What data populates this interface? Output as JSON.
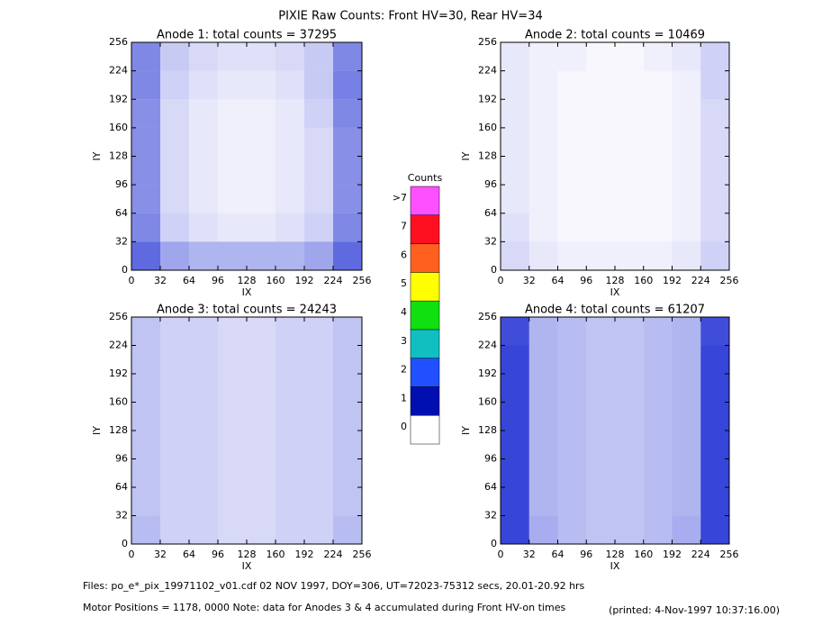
{
  "title": "PIXIE Raw Counts:  Front HV=30, Rear HV=34",
  "colorbar": {
    "title": "Counts",
    "ticks": [
      0,
      1,
      2,
      3,
      4,
      5,
      6,
      7,
      {
        "value": 8,
        "label": ">7"
      }
    ],
    "colors": [
      "#ffffff",
      "#0010b0",
      "#2050ff",
      "#10c0c0",
      "#10e010",
      "#ffff00",
      "#ff6020",
      "#ff1020",
      "#ff50ff"
    ]
  },
  "footer": {
    "files": "Files: po_e*_pix_19971102_v01.cdf    02 NOV 1997, DOY=306, UT=72023-75312 secs, 20.01-20.92 hrs",
    "motor": "Motor Positions = 1178, 0000    Note: data for Anodes 3 & 4 accumulated during Front HV-on times",
    "printed": "(printed:  4-Nov-1997 10:37:16.00)"
  },
  "chart_data": [
    {
      "type": "heatmap",
      "title": "Anode 1: total counts = 37295",
      "x_label": "IX",
      "y_label": "IY",
      "color": "#1020d0",
      "xlim": [
        0,
        256
      ],
      "ylim": [
        0,
        256
      ],
      "xticks": [
        0,
        32,
        64,
        96,
        128,
        160,
        192,
        224,
        256
      ],
      "yticks": [
        0,
        32,
        64,
        96,
        128,
        160,
        192,
        224,
        256
      ],
      "values": [
        [
          2,
          1.2,
          1,
          1,
          1,
          1,
          1.2,
          2
        ],
        [
          1.6,
          0.6,
          0.4,
          0.3,
          0.3,
          0.4,
          0.6,
          1.6
        ],
        [
          1.5,
          0.5,
          0.3,
          0.2,
          0.2,
          0.3,
          0.5,
          1.5
        ],
        [
          1.5,
          0.5,
          0.3,
          0.2,
          0.2,
          0.3,
          0.5,
          1.5
        ],
        [
          1.5,
          0.5,
          0.3,
          0.2,
          0.2,
          0.3,
          0.5,
          1.5
        ],
        [
          1.5,
          0.5,
          0.3,
          0.2,
          0.2,
          0.3,
          0.6,
          1.6
        ],
        [
          1.6,
          0.6,
          0.4,
          0.3,
          0.3,
          0.4,
          0.7,
          1.7
        ],
        [
          1.6,
          0.7,
          0.5,
          0.4,
          0.4,
          0.5,
          0.7,
          1.6
        ]
      ]
    },
    {
      "type": "heatmap",
      "title": "Anode 2: total counts = 10469",
      "x_label": "IX",
      "y_label": "IY",
      "color": "#1020d0",
      "xlim": [
        0,
        256
      ],
      "ylim": [
        0,
        256
      ],
      "xticks": [
        0,
        32,
        64,
        96,
        128,
        160,
        192,
        224,
        256
      ],
      "yticks": [
        0,
        32,
        64,
        96,
        128,
        160,
        192,
        224,
        256
      ],
      "values": [
        [
          0.5,
          0.3,
          0.2,
          0.2,
          0.2,
          0.2,
          0.3,
          0.6
        ],
        [
          0.4,
          0.2,
          0.1,
          0.1,
          0.1,
          0.1,
          0.2,
          0.5
        ],
        [
          0.3,
          0.2,
          0.1,
          0.1,
          0.1,
          0.1,
          0.2,
          0.5
        ],
        [
          0.3,
          0.2,
          0.1,
          0.1,
          0.1,
          0.1,
          0.2,
          0.5
        ],
        [
          0.3,
          0.2,
          0.1,
          0.1,
          0.1,
          0.1,
          0.2,
          0.5
        ],
        [
          0.3,
          0.2,
          0.1,
          0.1,
          0.1,
          0.1,
          0.2,
          0.5
        ],
        [
          0.3,
          0.2,
          0.1,
          0.1,
          0.1,
          0.1,
          0.2,
          0.6
        ],
        [
          0.3,
          0.2,
          0.2,
          0.1,
          0.1,
          0.2,
          0.3,
          0.6
        ]
      ]
    },
    {
      "type": "heatmap",
      "title": "Anode 3: total counts = 24243",
      "x_label": "IX",
      "y_label": "IY",
      "color": "#1020d0",
      "xlim": [
        0,
        256
      ],
      "ylim": [
        0,
        256
      ],
      "xticks": [
        0,
        32,
        64,
        96,
        128,
        160,
        192,
        224,
        256
      ],
      "yticks": [
        0,
        32,
        64,
        96,
        128,
        160,
        192,
        224,
        256
      ],
      "values": [
        [
          0.9,
          0.6,
          0.6,
          0.5,
          0.5,
          0.6,
          0.6,
          0.9
        ],
        [
          0.8,
          0.6,
          0.6,
          0.5,
          0.5,
          0.6,
          0.6,
          0.8
        ],
        [
          0.8,
          0.6,
          0.6,
          0.5,
          0.5,
          0.6,
          0.6,
          0.8
        ],
        [
          0.8,
          0.6,
          0.6,
          0.5,
          0.5,
          0.6,
          0.6,
          0.8
        ],
        [
          0.8,
          0.6,
          0.6,
          0.5,
          0.5,
          0.6,
          0.6,
          0.8
        ],
        [
          0.8,
          0.6,
          0.6,
          0.5,
          0.5,
          0.6,
          0.6,
          0.8
        ],
        [
          0.8,
          0.6,
          0.6,
          0.5,
          0.5,
          0.6,
          0.6,
          0.8
        ],
        [
          0.8,
          0.6,
          0.6,
          0.5,
          0.5,
          0.6,
          0.6,
          0.8
        ]
      ]
    },
    {
      "type": "heatmap",
      "title": "Anode 4: total counts = 61207",
      "x_label": "IX",
      "y_label": "IY",
      "color": "#1020d0",
      "xlim": [
        0,
        256
      ],
      "ylim": [
        0,
        256
      ],
      "xticks": [
        0,
        32,
        64,
        96,
        128,
        160,
        192,
        224,
        256
      ],
      "yticks": [
        0,
        32,
        64,
        96,
        128,
        160,
        192,
        224,
        256
      ],
      "values": [
        [
          2.5,
          1.1,
          0.9,
          0.8,
          0.8,
          0.9,
          1.1,
          2.5
        ],
        [
          2.5,
          1,
          0.9,
          0.8,
          0.8,
          0.9,
          1,
          2.5
        ],
        [
          2.5,
          1,
          0.9,
          0.8,
          0.8,
          0.9,
          1,
          2.5
        ],
        [
          2.5,
          1,
          0.9,
          0.8,
          0.8,
          0.9,
          1,
          2.5
        ],
        [
          2.5,
          1,
          0.9,
          0.8,
          0.8,
          0.9,
          1,
          2.5
        ],
        [
          2.5,
          1,
          0.9,
          0.8,
          0.8,
          0.9,
          1,
          2.5
        ],
        [
          2.5,
          1,
          0.9,
          0.8,
          0.8,
          0.9,
          1,
          2.5
        ],
        [
          2.4,
          1,
          0.9,
          0.8,
          0.8,
          0.9,
          1,
          2.4
        ]
      ]
    }
  ]
}
